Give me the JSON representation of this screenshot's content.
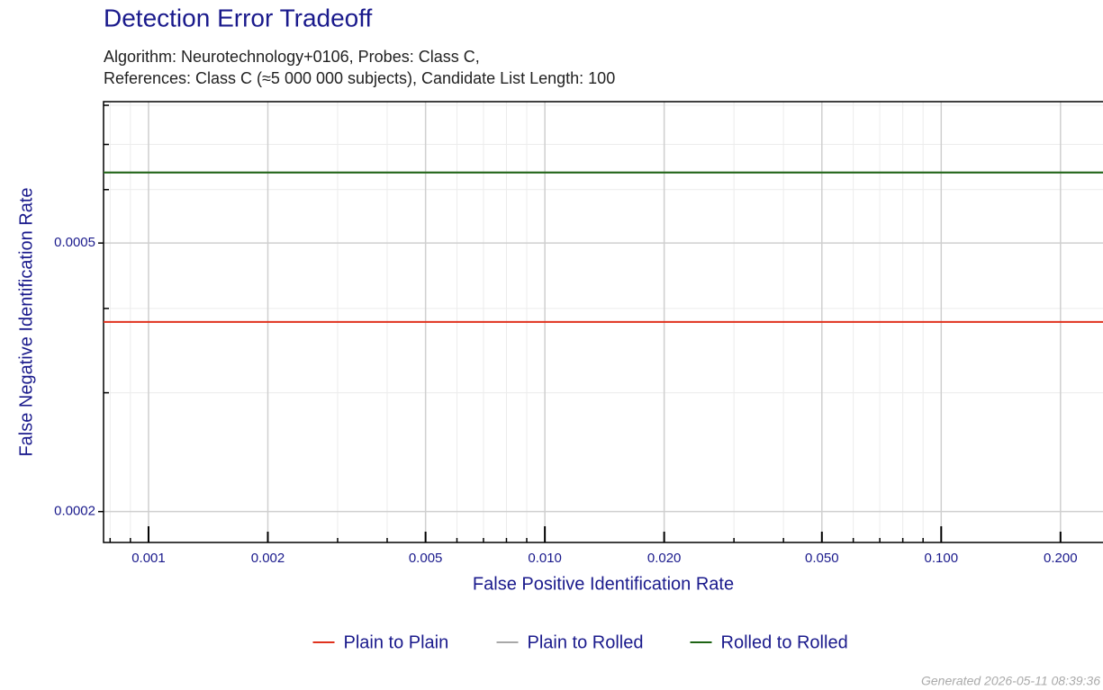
{
  "chart_data": {
    "type": "line",
    "title": "Detection Error Tradeoff",
    "subtitle": [
      "Algorithm: Neurotechnology+0106, Probes: Class C,",
      "References: Class C (≈5 000 000 subjects), Candidate List Length: 100"
    ],
    "x_label": "False Positive Identification Rate",
    "y_label": "False Negative Identification Rate",
    "log_x": true,
    "log_y": true,
    "grid": true,
    "legend": "bottom",
    "x": [
      0.00077,
      0.256
    ],
    "series": [
      {
        "name": "Plain to Plain",
        "color": "#e0321e",
        "values": [
          0.000382,
          0.000382
        ]
      },
      {
        "name": "Plain to Rolled",
        "color": "#a8a8a8",
        "values": [
          0.000636,
          0.000636
        ]
      },
      {
        "name": "Rolled to Rolled",
        "color": "#1e6414",
        "values": [
          0.000636,
          0.000636
        ]
      }
    ],
    "xlim": [
      0.00077,
      0.256
    ],
    "xticks": [
      0.001,
      0.002,
      0.005,
      {
        "value": 0.01,
        "label": "0.010"
      },
      {
        "value": 0.02,
        "label": "0.020"
      },
      {
        "value": 0.05,
        "label": "0.050"
      },
      {
        "value": 0.1,
        "label": "0.100"
      },
      {
        "value": 0.2,
        "label": "0.200"
      }
    ],
    "xminor": [
      0.0008,
      0.0009,
      0.003,
      0.004,
      0.006,
      0.007,
      0.008,
      0.009,
      0.03,
      0.04,
      0.06,
      0.07,
      0.08,
      0.09
    ],
    "ylim": [
      0.00018,
      0.00081
    ],
    "yticks": [
      0.0002,
      0.0005
    ],
    "yminor": [
      0.0003,
      0.0004,
      0.0006,
      0.0007,
      0.0008
    ],
    "footer": "Generated 2026-05-11 08:39:36"
  }
}
